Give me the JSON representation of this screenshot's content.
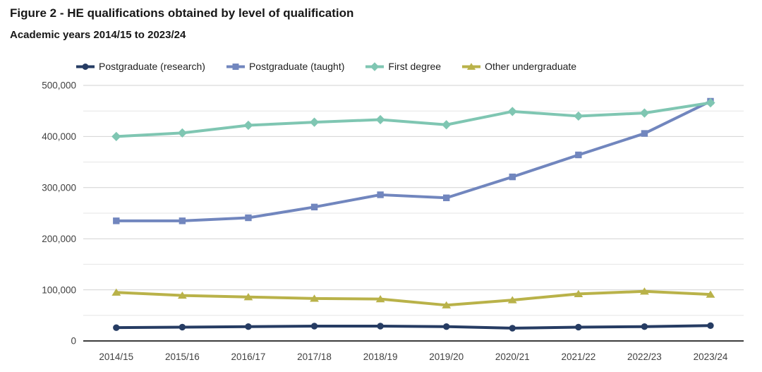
{
  "chart_data": {
    "type": "line",
    "title": "Figure 2 - HE qualifications obtained by level of qualification",
    "subtitle": "Academic years 2014/15 to 2023/24",
    "categories": [
      "2014/15",
      "2015/16",
      "2016/17",
      "2017/18",
      "2018/19",
      "2019/20",
      "2020/21",
      "2021/22",
      "2022/23",
      "2023/24"
    ],
    "series": [
      {
        "name": "Postgraduate (research)",
        "marker": "circle",
        "color": "#263C63",
        "values": [
          26000,
          27000,
          28000,
          29000,
          29000,
          28000,
          25000,
          27000,
          28000,
          30000
        ]
      },
      {
        "name": "Postgraduate (taught)",
        "marker": "square",
        "color": "#7186BE",
        "values": [
          235000,
          235000,
          241000,
          262000,
          286000,
          280000,
          321000,
          364000,
          406000,
          469000
        ]
      },
      {
        "name": "First degree",
        "marker": "diamond",
        "color": "#7FC6B2",
        "values": [
          400000,
          407000,
          422000,
          428000,
          433000,
          423000,
          449000,
          440000,
          446000,
          466000
        ]
      },
      {
        "name": "Other undergraduate",
        "marker": "triangle",
        "color": "#B9B249",
        "values": [
          95000,
          89000,
          86000,
          83000,
          82000,
          70000,
          80000,
          92000,
          97000,
          91000
        ]
      }
    ],
    "xlabel": "",
    "ylabel": "",
    "ylim": [
      0,
      500000
    ],
    "ytick_interval": 100000,
    "minor_gridline_interval": 50000,
    "ytick_labels": [
      "0",
      "100,000",
      "200,000",
      "300,000",
      "400,000",
      "500,000"
    ],
    "grid": true,
    "legend_position": "top"
  },
  "colors": {
    "gridline_major": "#D2D2D2",
    "gridline_minor": "#E6E6E6",
    "axis_line": "#3D3D3D",
    "tick_label": "#414141",
    "title_text": "#171717",
    "background": "#FFFFFF"
  }
}
